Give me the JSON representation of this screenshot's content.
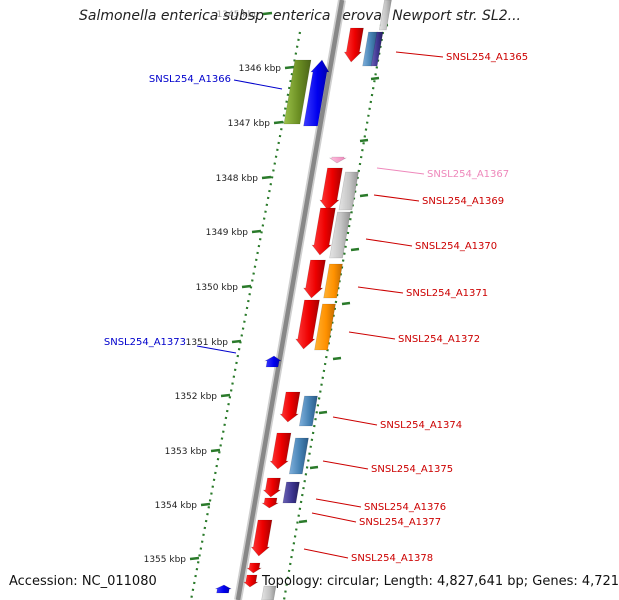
{
  "title": "Salmonella enterica subsp. enterica serovar Newport str. SL2...",
  "accession": "Accession: NC_011080",
  "summary": "Topology: circular; Length: 4,827,641 bp; Genes: 4,721",
  "colors": {
    "forward_label": "#0000cc",
    "reverse_label": "#cc0000",
    "rna_label": "#ee88bb",
    "track_dots": "#2a7a2a",
    "backbone": "#888888"
  },
  "axis": {
    "ticks": [
      "1345 kbp",
      "1346 kbp",
      "1347 kbp",
      "1348 kbp",
      "1349 kbp",
      "1350 kbp",
      "1351 kbp",
      "1352 kbp",
      "1353 kbp",
      "1354 kbp",
      "1355 kbp"
    ]
  },
  "gene_labels": [
    {
      "text": "SNSL254_A1365",
      "strand": "reverse"
    },
    {
      "text": "SNSL254_A1366",
      "strand": "forward"
    },
    {
      "text": "SNSL254_A1367",
      "strand": "rna"
    },
    {
      "text": "SNSL254_A1369",
      "strand": "reverse"
    },
    {
      "text": "SNSL254_A1370",
      "strand": "reverse"
    },
    {
      "text": "SNSL254_A1371",
      "strand": "reverse"
    },
    {
      "text": "SNSL254_A1372",
      "strand": "reverse"
    },
    {
      "text": "SNSL254_A1373",
      "strand": "forward"
    },
    {
      "text": "SNSL254_A1374",
      "strand": "reverse"
    },
    {
      "text": "SNSL254_A1375",
      "strand": "reverse"
    },
    {
      "text": "SNSL254_A1376",
      "strand": "reverse"
    },
    {
      "text": "SNSL254_A1377",
      "strand": "reverse"
    },
    {
      "text": "SNSL254_A1378",
      "strand": "reverse"
    }
  ]
}
